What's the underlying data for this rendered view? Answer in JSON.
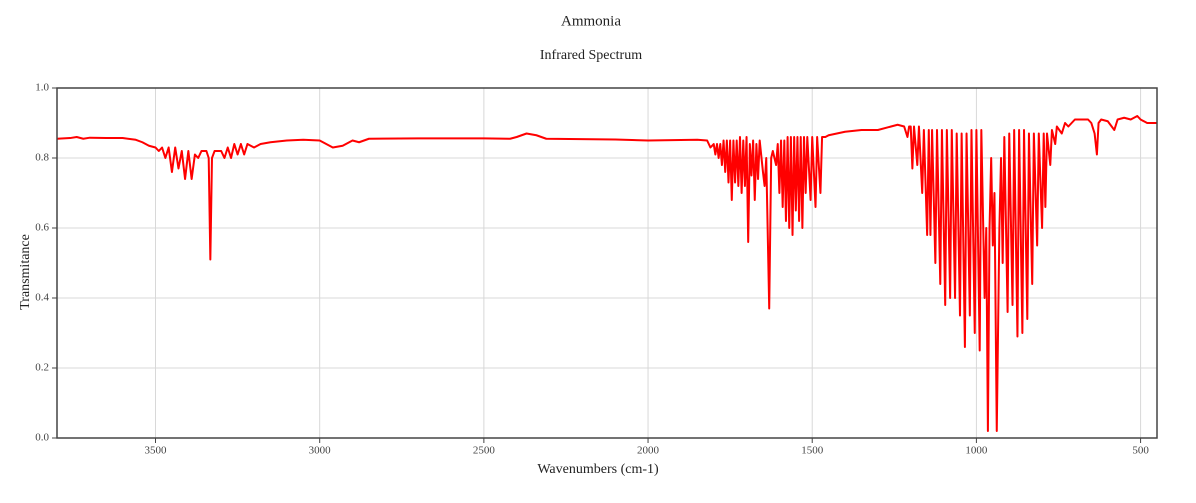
{
  "chart_data": {
    "type": "line",
    "title": "Ammonia",
    "subtitle": "Infrared Spectrum",
    "x_label": "Wavenumbers (cm-1)",
    "y_label": "Transmitance",
    "color": "#ff0000",
    "grid": true,
    "xlim": [
      3800,
      450
    ],
    "ylim": [
      0,
      1
    ],
    "xticks": [
      3500,
      3000,
      2500,
      2000,
      1500,
      1000,
      500
    ],
    "yticks": [
      {
        "value": 0,
        "label": "0.0"
      },
      0.2,
      0.4,
      0.6,
      0.8,
      {
        "value": 1,
        "label": "1.0"
      }
    ],
    "x": [
      3800,
      3760,
      3740,
      3720,
      3700,
      3650,
      3600,
      3560,
      3540,
      3520,
      3500,
      3490,
      3480,
      3470,
      3460,
      3450,
      3440,
      3430,
      3420,
      3410,
      3400,
      3390,
      3380,
      3370,
      3360,
      3350,
      3345,
      3338,
      3333,
      3328,
      3320,
      3300,
      3290,
      3280,
      3270,
      3260,
      3250,
      3240,
      3230,
      3220,
      3200,
      3180,
      3150,
      3100,
      3050,
      3000,
      2990,
      2960,
      2930,
      2900,
      2880,
      2850,
      2700,
      2500,
      2420,
      2400,
      2370,
      2340,
      2310,
      2100,
      2000,
      1850,
      1820,
      1810,
      1800,
      1795,
      1790,
      1785,
      1780,
      1775,
      1770,
      1765,
      1760,
      1755,
      1750,
      1745,
      1740,
      1735,
      1730,
      1725,
      1720,
      1715,
      1710,
      1705,
      1700,
      1695,
      1690,
      1685,
      1680,
      1675,
      1670,
      1665,
      1660,
      1650,
      1645,
      1640,
      1631,
      1625,
      1620,
      1610,
      1605,
      1600,
      1595,
      1590,
      1585,
      1580,
      1575,
      1570,
      1565,
      1560,
      1555,
      1550,
      1545,
      1540,
      1535,
      1530,
      1525,
      1520,
      1515,
      1505,
      1500,
      1490,
      1485,
      1475,
      1470,
      1460,
      1450,
      1400,
      1350,
      1300,
      1260,
      1240,
      1220,
      1210,
      1205,
      1200,
      1195,
      1190,
      1180,
      1175,
      1165,
      1160,
      1150,
      1145,
      1140,
      1135,
      1125,
      1120,
      1110,
      1105,
      1095,
      1090,
      1080,
      1075,
      1065,
      1060,
      1050,
      1045,
      1035,
      1030,
      1020,
      1015,
      1005,
      1000,
      990,
      985,
      975,
      970,
      965,
      960,
      955,
      950,
      945,
      938,
      930,
      925,
      920,
      915,
      905,
      900,
      890,
      885,
      875,
      870,
      860,
      855,
      845,
      840,
      830,
      825,
      815,
      810,
      800,
      795,
      790,
      785,
      775,
      770,
      760,
      755,
      740,
      730,
      720,
      700,
      680,
      660,
      650,
      640,
      633,
      628,
      620,
      600,
      580,
      570,
      550,
      530,
      510,
      500,
      480,
      450
    ],
    "values": [
      0.855,
      0.857,
      0.86,
      0.855,
      0.858,
      0.857,
      0.857,
      0.852,
      0.845,
      0.835,
      0.83,
      0.82,
      0.83,
      0.8,
      0.83,
      0.76,
      0.83,
      0.77,
      0.82,
      0.74,
      0.82,
      0.74,
      0.81,
      0.8,
      0.82,
      0.82,
      0.82,
      0.8,
      0.51,
      0.8,
      0.82,
      0.82,
      0.8,
      0.83,
      0.8,
      0.84,
      0.81,
      0.84,
      0.81,
      0.84,
      0.83,
      0.84,
      0.845,
      0.85,
      0.852,
      0.85,
      0.845,
      0.83,
      0.835,
      0.85,
      0.845,
      0.855,
      0.856,
      0.856,
      0.855,
      0.86,
      0.87,
      0.865,
      0.855,
      0.853,
      0.85,
      0.852,
      0.85,
      0.83,
      0.84,
      0.81,
      0.84,
      0.8,
      0.84,
      0.78,
      0.85,
      0.76,
      0.85,
      0.73,
      0.85,
      0.68,
      0.85,
      0.73,
      0.85,
      0.72,
      0.86,
      0.7,
      0.85,
      0.72,
      0.86,
      0.56,
      0.84,
      0.75,
      0.85,
      0.68,
      0.84,
      0.74,
      0.85,
      0.76,
      0.72,
      0.8,
      0.37,
      0.8,
      0.82,
      0.78,
      0.84,
      0.7,
      0.85,
      0.66,
      0.85,
      0.62,
      0.86,
      0.6,
      0.86,
      0.58,
      0.86,
      0.65,
      0.86,
      0.62,
      0.86,
      0.6,
      0.86,
      0.7,
      0.86,
      0.68,
      0.86,
      0.66,
      0.86,
      0.7,
      0.86,
      0.86,
      0.865,
      0.875,
      0.88,
      0.88,
      0.89,
      0.895,
      0.89,
      0.86,
      0.89,
      0.89,
      0.77,
      0.89,
      0.78,
      0.89,
      0.7,
      0.88,
      0.58,
      0.88,
      0.58,
      0.88,
      0.5,
      0.88,
      0.44,
      0.88,
      0.38,
      0.88,
      0.4,
      0.88,
      0.4,
      0.87,
      0.35,
      0.87,
      0.26,
      0.87,
      0.35,
      0.88,
      0.3,
      0.88,
      0.25,
      0.88,
      0.4,
      0.6,
      0.02,
      0.6,
      0.8,
      0.55,
      0.7,
      0.02,
      0.6,
      0.8,
      0.5,
      0.86,
      0.36,
      0.87,
      0.38,
      0.88,
      0.29,
      0.88,
      0.3,
      0.88,
      0.34,
      0.87,
      0.44,
      0.87,
      0.55,
      0.87,
      0.6,
      0.87,
      0.66,
      0.87,
      0.78,
      0.88,
      0.84,
      0.89,
      0.87,
      0.9,
      0.89,
      0.91,
      0.91,
      0.91,
      0.9,
      0.87,
      0.81,
      0.9,
      0.91,
      0.905,
      0.88,
      0.91,
      0.915,
      0.91,
      0.92,
      0.91,
      0.9,
      0.9
    ]
  }
}
